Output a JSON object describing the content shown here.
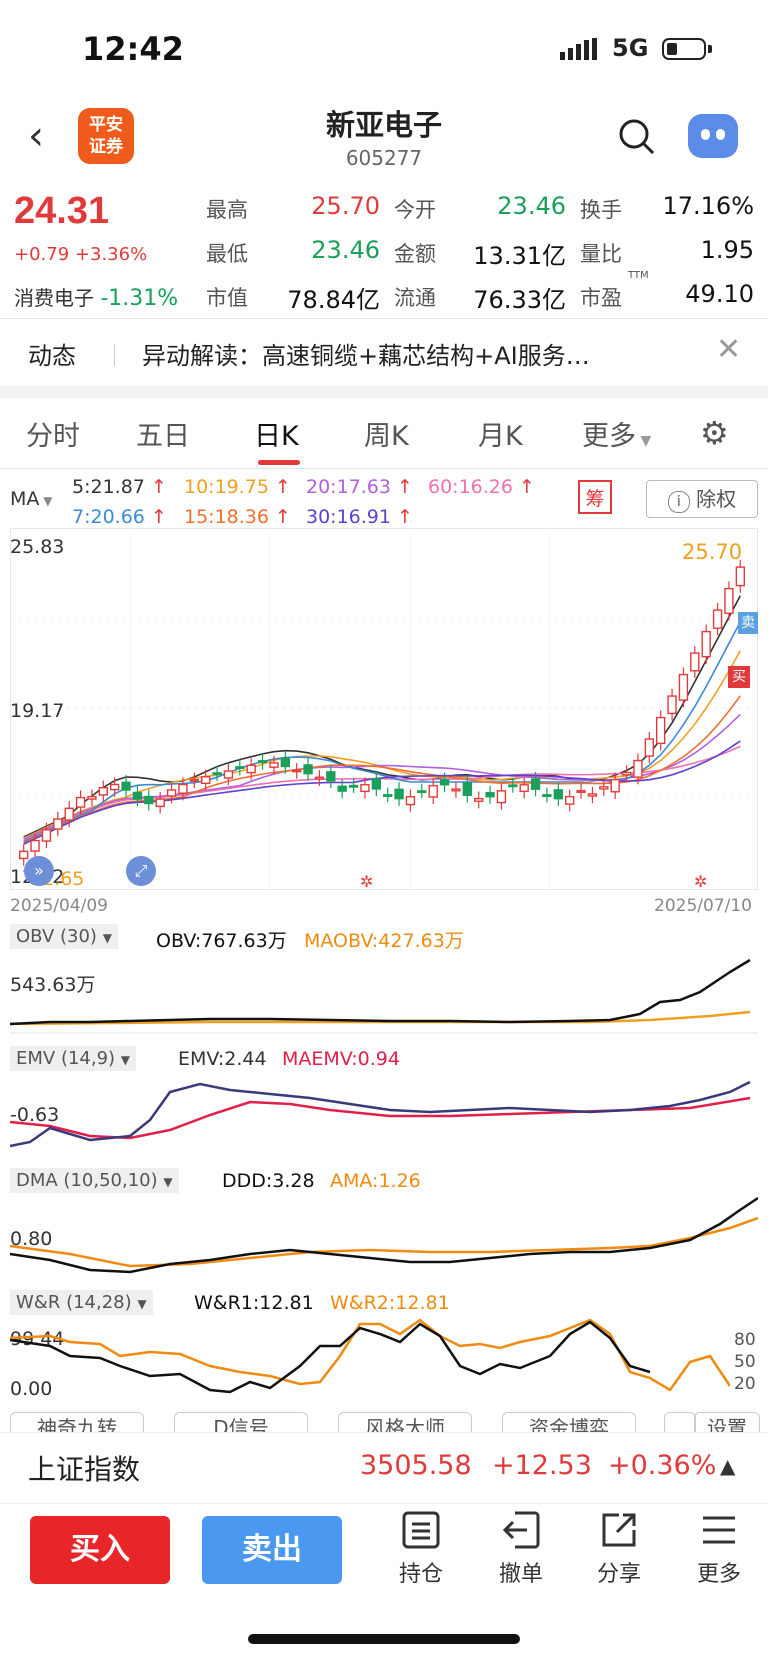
{
  "status": {
    "time": "12:42",
    "network": "5G"
  },
  "header": {
    "title": "新亚电子",
    "code": "605277",
    "broker_logo": "平安证券"
  },
  "quote": {
    "price": "24.31",
    "change": "+0.79",
    "change_pct": "+3.36%",
    "sector_name": "消费电子",
    "sector_change": "-1.31%",
    "fields": [
      {
        "label": "最高",
        "value": "25.70"
      },
      {
        "label": "今开",
        "value": "23.46"
      },
      {
        "label": "换手",
        "value": "17.16%"
      },
      {
        "label": "最低",
        "value": "23.46"
      },
      {
        "label": "金额",
        "value": "13.31亿"
      },
      {
        "label": "量比",
        "value": "1.95"
      },
      {
        "label": "市值",
        "value": "78.84亿"
      },
      {
        "label": "流通",
        "value": "76.33亿"
      },
      {
        "label": "市盈",
        "value": "49.10"
      }
    ],
    "ttm": "TTM"
  },
  "news": {
    "tag": "动态",
    "text": "异动解读：高速铜缆+藕芯结构+AI服务…"
  },
  "tabs": [
    "分时",
    "五日",
    "日K",
    "周K",
    "月K",
    "更多"
  ],
  "active_tab": "日K",
  "ma": {
    "label": "MA",
    "items": [
      {
        "text": "5:21.87",
        "color": "#333333"
      },
      {
        "text": "10:19.75",
        "color": "#f0a020"
      },
      {
        "text": "20:17.63",
        "color": "#b060e0"
      },
      {
        "text": "60:16.26",
        "color": "#f070b0"
      },
      {
        "text": "7:20.66",
        "color": "#3a8ad8"
      },
      {
        "text": "15:18.36",
        "color": "#f07030"
      },
      {
        "text": "30:16.91",
        "color": "#6040d0"
      }
    ],
    "chip_label": "筹",
    "exright_label": "除权"
  },
  "kline": {
    "y_top": "25.83",
    "y_mid": "19.17",
    "y_bottom": "12.52",
    "low_label": "12.65",
    "high_label": "25.70",
    "date_start": "2025/04/09",
    "date_end": "2025/07/10",
    "buy_mark": "买",
    "sell_mark": "卖"
  },
  "obv": {
    "name": "OBV (30)",
    "v1": "OBV:767.63万",
    "v2": "MAOBV:427.63万",
    "axis": "543.63万"
  },
  "emv": {
    "name": "EMV (14,9)",
    "v1": "EMV:2.44",
    "v2": "MAEMV:0.94",
    "axis": "-0.63"
  },
  "dma": {
    "name": "DMA (10,50,10)",
    "v1": "DDD:3.28",
    "v2": "AMA:1.26",
    "axis": "0.80"
  },
  "wr": {
    "name": "W&R (14,28)",
    "v1": "W&R1:12.81",
    "v2": "W&R2:12.81",
    "axis_top": "99.44",
    "axis_bottom": "0.00",
    "r80": "80",
    "r50": "50",
    "r20": "20"
  },
  "strategies": [
    "神奇九转",
    "D信号",
    "风格大师",
    "资金博弈",
    "设置"
  ],
  "index": {
    "name": "上证指数",
    "value": "3505.58",
    "change": "+12.53",
    "pct": "+0.36%"
  },
  "actions": {
    "buy": "买入",
    "sell": "卖出",
    "tools": [
      "持仓",
      "撤单",
      "分享",
      "更多"
    ]
  }
}
